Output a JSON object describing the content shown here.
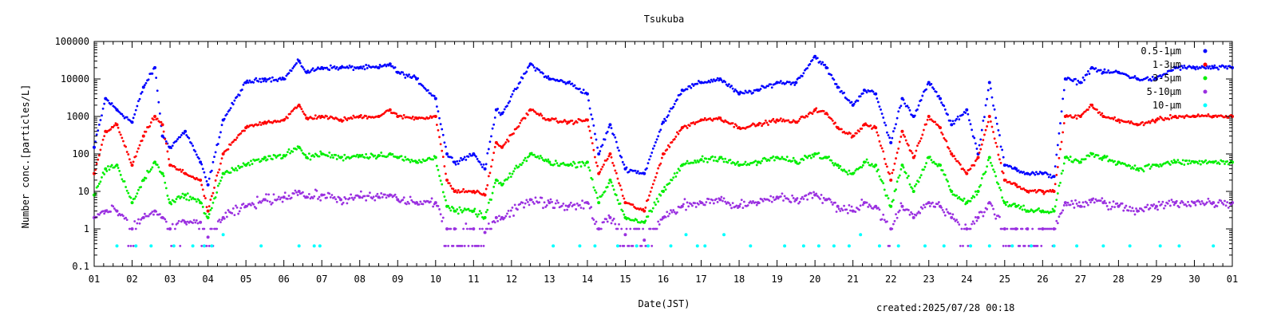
{
  "chart_data": {
    "type": "scatter",
    "title": "Tsukuba",
    "xlabel": "Date(JST)",
    "ylabel": "Number conc.[particles/L]",
    "created": "created:2025/07/28 00:18",
    "y_scale": "log",
    "ylim": [
      0.1,
      100000
    ],
    "xlim": [
      1,
      31
    ],
    "legend_position": "top-right",
    "y_ticks": [
      "0.1",
      "1",
      "10",
      "100",
      "1000",
      "10000",
      "100000"
    ],
    "x_ticks": [
      "01",
      "02",
      "03",
      "04",
      "05",
      "06",
      "07",
      "08",
      "09",
      "10",
      "11",
      "12",
      "13",
      "14",
      "15",
      "16",
      "17",
      "18",
      "19",
      "20",
      "21",
      "22",
      "23",
      "24",
      "25",
      "26",
      "27",
      "28",
      "29",
      "30",
      "01"
    ],
    "gap": [
      11.75,
      12.45
    ],
    "series": [
      {
        "name": "0.5-1μm",
        "color": "#0000ff",
        "jitter": 0.09,
        "x": [
          1,
          1.3,
          1.6,
          2,
          2.3,
          2.6,
          2.8,
          3,
          3.4,
          3.8,
          4,
          4.4,
          5,
          5.5,
          6,
          6.4,
          6.6,
          7,
          7.5,
          8,
          8.5,
          8.8,
          9,
          9.5,
          10,
          10.3,
          10.5,
          11,
          11.3,
          11.6,
          11.75,
          12.5,
          13,
          13.5,
          14,
          14.3,
          14.6,
          15,
          15.5,
          16,
          16.5,
          17,
          17.5,
          18,
          18.5,
          19,
          19.5,
          20,
          20.3,
          20.6,
          21,
          21.3,
          21.6,
          22,
          22.3,
          22.6,
          23,
          23.3,
          23.6,
          24,
          24.3,
          24.6,
          25,
          25.3,
          25.6,
          26,
          26.3,
          26.6,
          27,
          27.3,
          27.6,
          28,
          28.5,
          29,
          29.5,
          30,
          30.5,
          31
        ],
        "y": [
          150,
          3000,
          1500,
          700,
          6000,
          20000,
          300,
          150,
          400,
          60,
          15,
          800,
          8000,
          10000,
          10000,
          30000,
          15000,
          20000,
          20000,
          20000,
          20000,
          25000,
          15000,
          10000,
          3000,
          100,
          60,
          100,
          40,
          1500,
          1200,
          25000,
          10000,
          8000,
          4000,
          100,
          600,
          40,
          30,
          700,
          5000,
          8000,
          10000,
          4000,
          5000,
          8000,
          8000,
          40000,
          20000,
          6000,
          2000,
          5000,
          4000,
          200,
          3000,
          1000,
          8000,
          3000,
          600,
          1500,
          100,
          8000,
          50,
          40,
          30,
          30,
          25,
          10000,
          8000,
          20000,
          15000,
          15000,
          10000,
          10000,
          20000,
          20000,
          20000,
          20000
        ]
      },
      {
        "name": "1-3μm",
        "color": "#ff0000",
        "jitter": 0.08,
        "x": [
          1,
          1.3,
          1.6,
          2,
          2.3,
          2.6,
          2.8,
          3,
          3.4,
          3.8,
          4,
          4.4,
          5,
          5.5,
          6,
          6.4,
          6.6,
          7,
          7.5,
          8,
          8.5,
          8.8,
          9,
          9.5,
          10,
          10.3,
          10.5,
          11,
          11.3,
          11.6,
          11.75,
          12.5,
          13,
          13.5,
          14,
          14.3,
          14.6,
          15,
          15.5,
          16,
          16.5,
          17,
          17.5,
          18,
          18.5,
          19,
          19.5,
          20,
          20.3,
          20.6,
          21,
          21.3,
          21.6,
          22,
          22.3,
          22.6,
          23,
          23.3,
          23.6,
          24,
          24.3,
          24.6,
          25,
          25.3,
          25.6,
          26,
          26.3,
          26.6,
          27,
          27.3,
          27.6,
          28,
          28.5,
          29,
          29.5,
          30,
          30.5,
          31
        ],
        "y": [
          30,
          400,
          600,
          50,
          300,
          1000,
          600,
          50,
          30,
          20,
          3,
          100,
          500,
          700,
          800,
          2000,
          900,
          1000,
          800,
          1000,
          1000,
          1500,
          1000,
          900,
          1000,
          20,
          10,
          10,
          8,
          200,
          150,
          1500,
          800,
          700,
          800,
          30,
          100,
          5,
          3,
          100,
          500,
          800,
          900,
          500,
          600,
          800,
          700,
          1500,
          1200,
          500,
          300,
          600,
          500,
          20,
          400,
          80,
          1000,
          500,
          100,
          30,
          80,
          1000,
          20,
          15,
          10,
          10,
          10,
          1000,
          1000,
          2000,
          1000,
          800,
          600,
          800,
          1000,
          1000,
          1000,
          1000
        ]
      },
      {
        "name": "3-5μm",
        "color": "#00ee00",
        "jitter": 0.12,
        "x": [
          1,
          1.3,
          1.6,
          2,
          2.3,
          2.6,
          2.8,
          3,
          3.4,
          3.8,
          4,
          4.4,
          5,
          5.5,
          6,
          6.4,
          6.6,
          7,
          7.5,
          8,
          8.5,
          8.8,
          9,
          9.5,
          10,
          10.3,
          10.5,
          11,
          11.3,
          11.6,
          11.75,
          12.5,
          13,
          13.5,
          14,
          14.3,
          14.6,
          15,
          15.5,
          16,
          16.5,
          17,
          17.5,
          18,
          18.5,
          19,
          19.5,
          20,
          20.3,
          20.6,
          21,
          21.3,
          21.6,
          22,
          22.3,
          22.6,
          23,
          23.3,
          23.6,
          24,
          24.3,
          24.6,
          25,
          25.3,
          25.6,
          26,
          26.3,
          26.6,
          27,
          27.3,
          27.6,
          28,
          28.5,
          29,
          29.5,
          30,
          30.5,
          31
        ],
        "y": [
          8,
          40,
          50,
          5,
          20,
          60,
          30,
          5,
          8,
          5,
          2,
          30,
          50,
          80,
          90,
          150,
          80,
          100,
          80,
          90,
          90,
          100,
          80,
          60,
          80,
          4,
          3,
          3,
          2,
          20,
          15,
          100,
          60,
          50,
          60,
          5,
          20,
          2,
          1.5,
          10,
          50,
          70,
          80,
          50,
          60,
          80,
          60,
          100,
          80,
          50,
          30,
          60,
          50,
          4,
          50,
          10,
          80,
          50,
          10,
          5,
          10,
          80,
          5,
          4,
          3,
          3,
          3,
          80,
          60,
          100,
          80,
          60,
          40,
          50,
          60,
          60,
          60,
          60
        ]
      },
      {
        "name": "5-10μm",
        "color": "#9a30e0",
        "jitter": 0.2,
        "x": [
          1,
          1.3,
          1.6,
          2,
          2.3,
          2.6,
          2.8,
          3,
          3.4,
          3.8,
          4,
          4.4,
          5,
          5.5,
          6,
          6.4,
          6.6,
          7,
          7.5,
          8,
          8.5,
          8.8,
          9,
          9.5,
          10,
          10.3,
          10.5,
          11,
          11.3,
          11.6,
          11.75,
          12.5,
          13,
          13.5,
          14,
          14.3,
          14.6,
          15,
          15.5,
          16,
          16.5,
          17,
          17.5,
          18,
          18.5,
          19,
          19.5,
          20,
          20.3,
          20.6,
          21,
          21.3,
          21.6,
          22,
          22.3,
          22.6,
          23,
          23.3,
          23.6,
          24,
          24.3,
          24.6,
          25,
          25.3,
          25.6,
          26,
          26.3,
          26.6,
          27,
          27.3,
          27.6,
          28,
          28.5,
          29,
          29.5,
          30,
          30.5,
          31
        ],
        "y": [
          2,
          3,
          3,
          1,
          2,
          3,
          2,
          1,
          1.5,
          1.5,
          0.6,
          2,
          4,
          6,
          7,
          10,
          7,
          8,
          6,
          7,
          7,
          8,
          6,
          5,
          5,
          1,
          1,
          1,
          0.8,
          2,
          2,
          6,
          5,
          4,
          5,
          1,
          2,
          0.7,
          0.5,
          2,
          4,
          5,
          6,
          4,
          5,
          7,
          6,
          8,
          6,
          4,
          3,
          5,
          4,
          1,
          4,
          2,
          5,
          4,
          2,
          1,
          2,
          5,
          1,
          1,
          1,
          1,
          1,
          5,
          4,
          6,
          5,
          4,
          3,
          4,
          5,
          5,
          5,
          5
        ]
      },
      {
        "name": "10-μm",
        "color": "#00ffff",
        "jitter": 0,
        "x": [
          1.6,
          2.1,
          2.5,
          3.1,
          3.6,
          3.9,
          4.1,
          4.4,
          5.4,
          6.4,
          6.8,
          6.95,
          13.1,
          13.8,
          14.2,
          14.8,
          15.3,
          15.6,
          16.2,
          16.6,
          16.9,
          17.1,
          17.6,
          18.3,
          19.2,
          19.7,
          20.1,
          20.5,
          20.9,
          21.2,
          21.7,
          22.2,
          22.9,
          23.4,
          24.1,
          24.6,
          25.2,
          25.7,
          26.3,
          26.9,
          27.6,
          28.3,
          29.1,
          29.6,
          30.5
        ],
        "y": [
          0.35,
          0.35,
          0.35,
          0.35,
          0.35,
          0.35,
          0.35,
          0.7,
          0.35,
          0.35,
          0.35,
          0.35,
          0.35,
          0.35,
          0.35,
          0.35,
          0.35,
          0.35,
          0.35,
          0.7,
          0.35,
          0.35,
          0.7,
          0.35,
          0.35,
          0.35,
          0.35,
          0.35,
          0.35,
          0.7,
          0.35,
          0.35,
          0.35,
          0.35,
          0.35,
          0.35,
          0.35,
          0.35,
          0.35,
          0.35,
          0.35,
          0.35,
          0.35,
          0.35,
          0.35
        ]
      }
    ]
  }
}
